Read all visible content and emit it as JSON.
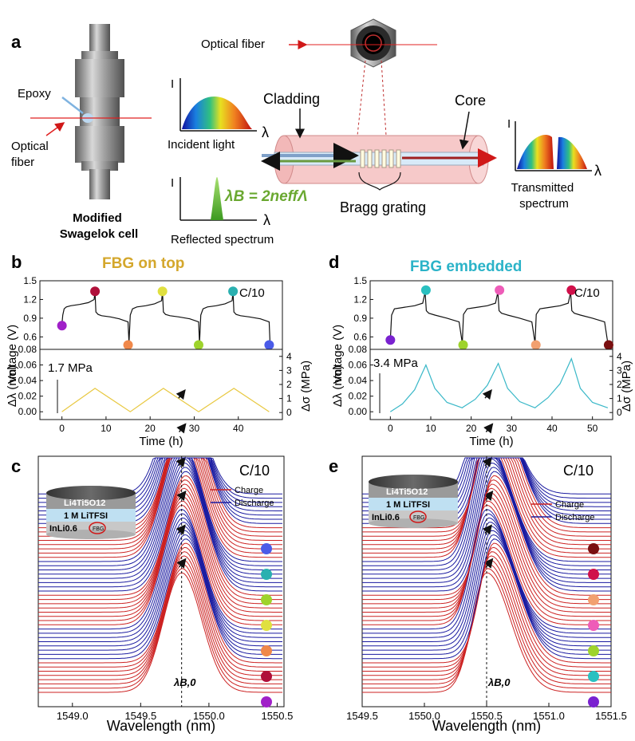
{
  "panel_labels": {
    "a": "a",
    "b": "b",
    "c": "c",
    "d": "d",
    "e": "e"
  },
  "schematic": {
    "optical_fiber_top": "Optical fiber",
    "epoxy": "Epoxy",
    "optical_fiber_left": "Optical\nfiber",
    "modified_cell": "Modified\nSwagelok cell",
    "cladding": "Cladding",
    "core": "Core",
    "incident_light": "Incident light",
    "reflected_spectrum": "Reflected spectrum",
    "transmitted_spectrum": "Transmitted\nspectrum",
    "bragg_grating": "Bragg grating",
    "equation": "λB = 2neffΛ",
    "axis_I": "I",
    "axis_lambda": "λ"
  },
  "panel_b": {
    "title": "FBG on top",
    "rate": "C/10",
    "stress_label": "1.7 MPa",
    "ylabel_top": "Voltage (V)",
    "ylabel_bottom": "Δλ (nm)",
    "ylabel_right": "Δσ (MPa)",
    "xlabel": "Time (h)"
  },
  "panel_d": {
    "title": "FBG embedded",
    "rate": "C/10",
    "stress_label": "3.4 MPa",
    "ylabel_top": "Voltage (V)",
    "ylabel_bottom": "Δλ (nm)",
    "ylabel_right": "Δσ (MPa)",
    "xlabel": "Time (h)"
  },
  "panel_c": {
    "rate": "C/10",
    "legend_charge": "Charge",
    "legend_discharge": "Discharge",
    "lambda_label": "λB,0",
    "xlabel": "Wavelength (nm)",
    "cell_layers": [
      "Li4Ti5O12",
      "1 M LiTFSI",
      "InLi0.6"
    ],
    "fbg": "FBG"
  },
  "panel_e": {
    "rate": "C/10",
    "legend_charge": "Charge",
    "legend_discharge": "Discharge",
    "lambda_label": "λB,0",
    "xlabel": "Wavelength (nm)",
    "cell_layers": [
      "Li4Ti5O12",
      "1 M LiTFSI",
      "InLi0.6"
    ],
    "fbg": "FBG"
  },
  "chart_data": [
    {
      "id": "b-voltage",
      "type": "line",
      "xlabel": "Time (h)",
      "ylabel": "Voltage (V)",
      "xlim": [
        -5,
        50
      ],
      "ylim": [
        0.4,
        1.5
      ],
      "xticks": [
        0,
        10,
        20,
        30,
        40
      ],
      "yticks": [
        0.6,
        0.9,
        1.2,
        1.5
      ],
      "x": [
        0,
        0.2,
        0.5,
        1,
        2,
        4,
        6,
        7.3,
        7.5,
        7.7,
        8.2,
        9,
        11,
        13,
        15,
        15.2,
        15.5,
        16,
        17,
        19,
        21,
        22.6,
        22.8,
        23,
        23.5,
        24.5,
        26.5,
        29,
        31,
        31.2,
        31.5,
        32,
        33,
        35,
        37,
        38.6,
        38.8,
        39,
        39.5,
        40.5,
        42.5,
        45,
        47,
        47.2
      ],
      "y": [
        0.8,
        0.95,
        1.05,
        1.08,
        1.1,
        1.12,
        1.15,
        1.2,
        1.33,
        1.0,
        0.96,
        0.94,
        0.92,
        0.89,
        0.84,
        0.5,
        0.95,
        1.05,
        1.08,
        1.1,
        1.13,
        1.18,
        1.33,
        1.0,
        0.96,
        0.94,
        0.92,
        0.89,
        0.84,
        0.5,
        0.95,
        1.05,
        1.08,
        1.1,
        1.13,
        1.18,
        1.33,
        1.0,
        0.96,
        0.94,
        0.92,
        0.89,
        0.84,
        0.5
      ],
      "markers": [
        {
          "x": 0,
          "y": 0.78,
          "color": "#a020c8"
        },
        {
          "x": 7.5,
          "y": 1.33,
          "color": "#b0103a"
        },
        {
          "x": 15,
          "y": 0.47,
          "color": "#f0884a"
        },
        {
          "x": 22.8,
          "y": 1.33,
          "color": "#e0e040"
        },
        {
          "x": 31,
          "y": 0.47,
          "color": "#9ed32c"
        },
        {
          "x": 38.8,
          "y": 1.33,
          "color": "#2ab0b0"
        },
        {
          "x": 47,
          "y": 0.47,
          "color": "#4a5be8"
        }
      ]
    },
    {
      "id": "b-shift",
      "type": "line",
      "xlabel": "Time (h)",
      "ylabel": "Δλ (nm)",
      "y2label": "Δσ (MPa)",
      "xlim": [
        -5,
        50
      ],
      "ylim": [
        -0.01,
        0.08
      ],
      "y2lim": [
        -0.5,
        4.5
      ],
      "xticks": [
        0,
        10,
        20,
        30,
        40
      ],
      "yticks": [
        0.0,
        0.02,
        0.04,
        0.06,
        0.08
      ],
      "y2ticks": [
        0,
        1,
        2,
        3,
        4
      ],
      "x": [
        0,
        7.5,
        15.5,
        23,
        31,
        39,
        47
      ],
      "y": [
        0.0,
        0.03,
        0.0,
        0.03,
        0.0,
        0.03,
        0.0
      ],
      "annotation": "1.7 MPa"
    },
    {
      "id": "d-voltage",
      "type": "line",
      "xlabel": "Time (h)",
      "ylabel": "Voltage (V)",
      "xlim": [
        -5,
        55
      ],
      "ylim": [
        0.4,
        1.5
      ],
      "xticks": [
        0,
        10,
        20,
        30,
        40,
        50
      ],
      "yticks": [
        0.6,
        0.9,
        1.2,
        1.5
      ],
      "x": [
        0,
        0.3,
        1,
        3,
        6,
        8,
        8.6,
        8.9,
        9.5,
        11,
        14,
        17,
        17.8,
        18.1,
        19,
        21,
        24,
        26,
        26.6,
        26.9,
        27.5,
        29,
        32,
        35,
        35.8,
        36.1,
        37,
        39,
        42,
        44,
        44.6,
        44.9,
        45.5,
        47,
        50,
        53,
        53.8
      ],
      "y": [
        0.55,
        0.95,
        1.05,
        1.07,
        1.1,
        1.14,
        1.32,
        1.02,
        0.98,
        0.95,
        0.9,
        0.84,
        0.5,
        0.96,
        1.05,
        1.07,
        1.1,
        1.14,
        1.32,
        1.02,
        0.98,
        0.95,
        0.9,
        0.84,
        0.5,
        0.96,
        1.05,
        1.07,
        1.1,
        1.14,
        1.32,
        1.02,
        0.98,
        0.95,
        0.9,
        0.84,
        0.5
      ],
      "markers": [
        {
          "x": 0,
          "y": 0.55,
          "color": "#7a22d0"
        },
        {
          "x": 8.8,
          "y": 1.35,
          "color": "#2ac0c0"
        },
        {
          "x": 18,
          "y": 0.47,
          "color": "#9ed32c"
        },
        {
          "x": 27,
          "y": 1.35,
          "color": "#ee5cb8"
        },
        {
          "x": 36,
          "y": 0.47,
          "color": "#f2a070"
        },
        {
          "x": 44.8,
          "y": 1.35,
          "color": "#d0104a"
        },
        {
          "x": 54,
          "y": 0.47,
          "color": "#7a0f10"
        }
      ]
    },
    {
      "id": "d-shift",
      "type": "line",
      "xlabel": "Time (h)",
      "ylabel": "Δλ (nm)",
      "y2label": "Δσ (MPa)",
      "xlim": [
        -5,
        55
      ],
      "ylim": [
        -0.01,
        0.08
      ],
      "y2lim": [
        -0.5,
        4.5
      ],
      "xticks": [
        0,
        10,
        20,
        30,
        40,
        50
      ],
      "yticks": [
        0.0,
        0.02,
        0.04,
        0.06,
        0.08
      ],
      "y2ticks": [
        0,
        1,
        2,
        3,
        4
      ],
      "x": [
        0,
        3,
        6,
        8.8,
        11,
        14,
        17.8,
        18,
        21,
        24,
        26.7,
        29,
        32,
        35.8,
        36,
        39,
        42,
        44.8,
        47,
        50,
        53.8
      ],
      "y": [
        0.0,
        0.01,
        0.028,
        0.06,
        0.03,
        0.012,
        0.005,
        0.006,
        0.016,
        0.034,
        0.062,
        0.03,
        0.013,
        0.005,
        0.006,
        0.018,
        0.036,
        0.068,
        0.03,
        0.012,
        0.005
      ],
      "annotation": "3.4 MPa"
    },
    {
      "id": "c-spectra",
      "type": "line",
      "xlabel": "Wavelength (nm)",
      "xlim": [
        1548.75,
        1550.55
      ],
      "xticks": [
        1549.0,
        1549.5,
        1550.0,
        1550.5
      ],
      "lambda_B0": 1549.8,
      "series_pattern": [
        "Charge x8",
        "Discharge x8",
        "Charge x8",
        "Discharge x8",
        "Charge x8",
        "Discharge x8"
      ],
      "peak_shift_amplitude_nm": 0.03,
      "marker_colors_bottom_to_top": [
        "#a020c8",
        "#b0103a",
        "#f0884a",
        "#e0e040",
        "#9ed32c",
        "#2ab0b0",
        "#4a5be8"
      ]
    },
    {
      "id": "e-spectra",
      "type": "line",
      "xlabel": "Wavelength (nm)",
      "xlim": [
        1549.5,
        1551.5
      ],
      "xticks": [
        1549.5,
        1550.0,
        1550.5,
        1551.0,
        1551.5
      ],
      "lambda_B0": 1550.5,
      "series_pattern": [
        "Charge x8",
        "Discharge x8",
        "Charge x8",
        "Discharge x8",
        "Charge x8",
        "Discharge x8"
      ],
      "peak_shift_amplitude_nm": 0.06,
      "marker_colors_bottom_to_top": [
        "#7a22d0",
        "#2ac0c0",
        "#9ed32c",
        "#ee5cb8",
        "#f2a070",
        "#d0104a",
        "#7a0f10"
      ]
    }
  ],
  "colors": {
    "charge": "#cc2222",
    "discharge": "#1a1aa0",
    "title_b": "#d4a72c",
    "title_d": "#2bb3c8",
    "shift_b": "#e8c840",
    "shift_d": "#3ab8c8",
    "fiber_pink": "#f6c9c9"
  }
}
